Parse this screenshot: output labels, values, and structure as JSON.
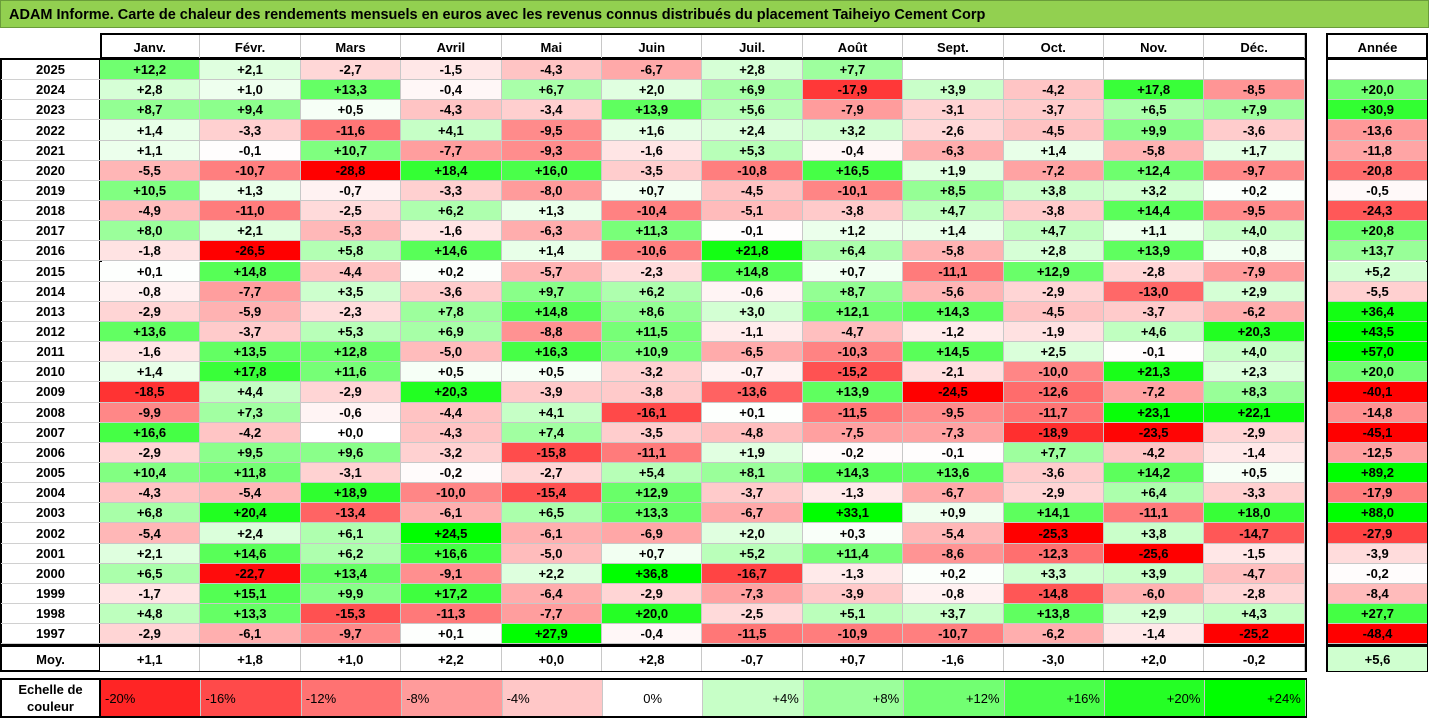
{
  "title": "ADAM Informe. Carte de chaleur des rendements mensuels en euros avec les revenus connus distribués du placement Taiheiyo Cement Corp",
  "chart_data": {
    "type": "heatmap",
    "months": [
      "Janv.",
      "Févr.",
      "Mars",
      "Avril",
      "Mai",
      "Juin",
      "Juil.",
      "Août",
      "Sept.",
      "Oct.",
      "Nov.",
      "Déc."
    ],
    "year_label": "Année",
    "avg_label": "Moy.",
    "rows": [
      {
        "year": "2025",
        "values": [
          "+12,2",
          "+2,1",
          "-2,7",
          "-1,5",
          "-4,3",
          "-6,7",
          "+2,8",
          "+7,7",
          "",
          "",
          "",
          ""
        ],
        "annual": ""
      },
      {
        "year": "2024",
        "values": [
          "+2,8",
          "+1,0",
          "+13,3",
          "-0,4",
          "+6,7",
          "+2,0",
          "+6,9",
          "-17,9",
          "+3,9",
          "-4,2",
          "+17,8",
          "-8,5"
        ],
        "annual": "+20,0"
      },
      {
        "year": "2023",
        "values": [
          "+8,7",
          "+9,4",
          "+0,5",
          "-4,3",
          "-3,4",
          "+13,9",
          "+5,6",
          "-7,9",
          "-3,1",
          "-3,7",
          "+6,5",
          "+7,9"
        ],
        "annual": "+30,9"
      },
      {
        "year": "2022",
        "values": [
          "+1,4",
          "-3,3",
          "-11,6",
          "+4,1",
          "-9,5",
          "+1,6",
          "+2,4",
          "+3,2",
          "-2,6",
          "-4,5",
          "+9,9",
          "-3,6"
        ],
        "annual": "-13,6"
      },
      {
        "year": "2021",
        "values": [
          "+1,1",
          "-0,1",
          "+10,7",
          "-7,7",
          "-9,3",
          "-1,6",
          "+5,3",
          "-0,4",
          "-6,3",
          "+1,4",
          "-5,8",
          "+1,7"
        ],
        "annual": "-11,8"
      },
      {
        "year": "2020",
        "values": [
          "-5,5",
          "-10,7",
          "-28,8",
          "+18,4",
          "+16,0",
          "-3,5",
          "-10,8",
          "+16,5",
          "+1,9",
          "-7,2",
          "+12,4",
          "-9,7"
        ],
        "annual": "-20,8"
      },
      {
        "year": "2019",
        "values": [
          "+10,5",
          "+1,3",
          "-0,7",
          "-3,3",
          "-8,0",
          "+0,7",
          "-4,5",
          "-10,1",
          "+8,5",
          "+3,8",
          "+3,2",
          "+0,2"
        ],
        "annual": "-0,5"
      },
      {
        "year": "2018",
        "values": [
          "-4,9",
          "-11,0",
          "-2,5",
          "+6,2",
          "+1,3",
          "-10,4",
          "-5,1",
          "-3,8",
          "+4,7",
          "-3,8",
          "+14,4",
          "-9,5"
        ],
        "annual": "-24,3"
      },
      {
        "year": "2017",
        "values": [
          "+8,0",
          "+2,1",
          "-5,3",
          "-1,6",
          "-6,3",
          "+11,3",
          "-0,1",
          "+1,2",
          "+1,4",
          "+4,7",
          "+1,1",
          "+4,0"
        ],
        "annual": "+20,8"
      },
      {
        "year": "2016",
        "values": [
          "-1,8",
          "-26,5",
          "+5,8",
          "+14,6",
          "+1,4",
          "-10,6",
          "+21,8",
          "+6,4",
          "-5,8",
          "+2,8",
          "+13,9",
          "+0,8"
        ],
        "annual": "+13,7"
      },
      {
        "year": "2015",
        "values": [
          "+0,1",
          "+14,8",
          "-4,4",
          "+0,2",
          "-5,7",
          "-2,3",
          "+14,8",
          "+0,7",
          "-11,1",
          "+12,9",
          "-2,8",
          "-7,9"
        ],
        "annual": "+5,2"
      },
      {
        "year": "2014",
        "values": [
          "-0,8",
          "-7,7",
          "+3,5",
          "-3,6",
          "+9,7",
          "+6,2",
          "-0,6",
          "+8,7",
          "-5,6",
          "-2,9",
          "-13,0",
          "+2,9"
        ],
        "annual": "-5,5"
      },
      {
        "year": "2013",
        "values": [
          "-2,9",
          "-5,9",
          "-2,3",
          "+7,8",
          "+14,8",
          "+8,6",
          "+3,0",
          "+12,1",
          "+14,3",
          "-4,5",
          "-3,7",
          "-6,2"
        ],
        "annual": "+36,4"
      },
      {
        "year": "2012",
        "values": [
          "+13,6",
          "-3,7",
          "+5,3",
          "+6,9",
          "-8,8",
          "+11,5",
          "-1,1",
          "-4,7",
          "-1,2",
          "-1,9",
          "+4,6",
          "+20,3"
        ],
        "annual": "+43,5"
      },
      {
        "year": "2011",
        "values": [
          "-1,6",
          "+13,5",
          "+12,8",
          "-5,0",
          "+16,3",
          "+10,9",
          "-6,5",
          "-10,3",
          "+14,5",
          "+2,5",
          "-0,1",
          "+4,0"
        ],
        "annual": "+57,0"
      },
      {
        "year": "2010",
        "values": [
          "+1,4",
          "+17,8",
          "+11,6",
          "+0,5",
          "+0,5",
          "-3,2",
          "-0,7",
          "-15,2",
          "-2,1",
          "-10,0",
          "+21,3",
          "+2,3"
        ],
        "annual": "+20,0"
      },
      {
        "year": "2009",
        "values": [
          "-18,5",
          "+4,4",
          "-2,9",
          "+20,3",
          "-3,9",
          "-3,8",
          "-13,6",
          "+13,9",
          "-24,5",
          "-12,6",
          "-7,2",
          "+8,3"
        ],
        "annual": "-40,1"
      },
      {
        "year": "2008",
        "values": [
          "-9,9",
          "+7,3",
          "-0,6",
          "-4,4",
          "+4,1",
          "-16,1",
          "+0,1",
          "-11,5",
          "-9,5",
          "-11,7",
          "+23,1",
          "+22,1"
        ],
        "annual": "-14,8"
      },
      {
        "year": "2007",
        "values": [
          "+16,6",
          "-4,2",
          "+0,0",
          "-4,3",
          "+7,4",
          "-3,5",
          "-4,8",
          "-7,5",
          "-7,3",
          "-18,9",
          "-23,5",
          "-2,9"
        ],
        "annual": "-45,1"
      },
      {
        "year": "2006",
        "values": [
          "-2,9",
          "+9,5",
          "+9,6",
          "-3,2",
          "-15,8",
          "-11,1",
          "+1,9",
          "-0,2",
          "-0,1",
          "+7,7",
          "-4,2",
          "-1,4"
        ],
        "annual": "-12,5"
      },
      {
        "year": "2005",
        "values": [
          "+10,4",
          "+11,8",
          "-3,1",
          "-0,2",
          "-2,7",
          "+5,4",
          "+8,1",
          "+14,3",
          "+13,6",
          "-3,6",
          "+14,2",
          "+0,5"
        ],
        "annual": "+89,2"
      },
      {
        "year": "2004",
        "values": [
          "-4,3",
          "-5,4",
          "+18,9",
          "-10,0",
          "-15,4",
          "+12,9",
          "-3,7",
          "-1,3",
          "-6,7",
          "-2,9",
          "+6,4",
          "-3,3"
        ],
        "annual": "-17,9"
      },
      {
        "year": "2003",
        "values": [
          "+6,8",
          "+20,4",
          "-13,4",
          "-6,1",
          "+6,5",
          "+13,3",
          "-6,7",
          "+33,1",
          "+0,9",
          "+14,1",
          "-11,1",
          "+18,0"
        ],
        "annual": "+88,0"
      },
      {
        "year": "2002",
        "values": [
          "-5,4",
          "+2,4",
          "+6,1",
          "+24,5",
          "-6,1",
          "-6,9",
          "+2,0",
          "+0,3",
          "-5,4",
          "-25,3",
          "+3,8",
          "-14,7"
        ],
        "annual": "-27,9"
      },
      {
        "year": "2001",
        "values": [
          "+2,1",
          "+14,6",
          "+6,2",
          "+16,6",
          "-5,0",
          "+0,7",
          "+5,2",
          "+11,4",
          "-8,6",
          "-12,3",
          "-25,6",
          "-1,5"
        ],
        "annual": "-3,9"
      },
      {
        "year": "2000",
        "values": [
          "+6,5",
          "-22,7",
          "+13,4",
          "-9,1",
          "+2,2",
          "+36,8",
          "-16,7",
          "-1,3",
          "+0,2",
          "+3,3",
          "+3,9",
          "-4,7"
        ],
        "annual": "-0,2"
      },
      {
        "year": "1999",
        "values": [
          "-1,7",
          "+15,1",
          "+9,9",
          "+17,2",
          "-6,4",
          "-2,9",
          "-7,3",
          "-3,9",
          "-0,8",
          "-14,8",
          "-6,0",
          "-2,8"
        ],
        "annual": "-8,4"
      },
      {
        "year": "1998",
        "values": [
          "+4,8",
          "+13,3",
          "-15,3",
          "-11,3",
          "-7,7",
          "+20,0",
          "-2,5",
          "+5,1",
          "+3,7",
          "+13,8",
          "+2,9",
          "+4,3"
        ],
        "annual": "+27,7"
      },
      {
        "year": "1997",
        "values": [
          "-2,9",
          "-6,1",
          "-9,7",
          "+0,1",
          "+27,9",
          "-0,4",
          "-11,5",
          "-10,9",
          "-10,7",
          "-6,2",
          "-1,4",
          "-25,2"
        ],
        "annual": "-48,4"
      }
    ],
    "averages": [
      "+1,1",
      "+1,8",
      "+1,0",
      "+2,2",
      "+0,0",
      "+2,8",
      "-0,7",
      "+0,7",
      "-1,6",
      "-3,0",
      "+2,0",
      "-0,2"
    ],
    "average_annual": "+5,6",
    "scale_label": "Echelle de couleur",
    "scale": [
      {
        "label": "-20%",
        "value": -20
      },
      {
        "label": "-16%",
        "value": -16
      },
      {
        "label": "-12%",
        "value": -12
      },
      {
        "label": "-8%",
        "value": -8
      },
      {
        "label": "-4%",
        "value": -4
      },
      {
        "label": "0%",
        "value": 0
      },
      {
        "label": "+4%",
        "value": 4
      },
      {
        "label": "+8%",
        "value": 8
      },
      {
        "label": "+12%",
        "value": 12
      },
      {
        "label": "+16%",
        "value": 16
      },
      {
        "label": "+20%",
        "value": 20
      },
      {
        "label": "+24%",
        "value": 24
      }
    ],
    "colors": {
      "negative": "#ff0000",
      "neutral": "#ffffff",
      "positive": "#00ff00",
      "title_bg": "#92d050"
    }
  }
}
